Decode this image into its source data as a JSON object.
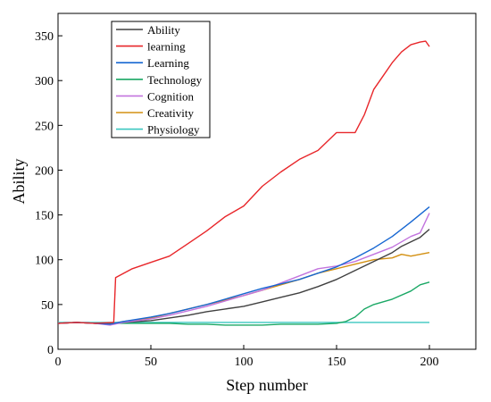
{
  "chart_data": {
    "type": "line",
    "xlabel": "Step number",
    "ylabel": "Ability",
    "xlim": [
      0,
      225
    ],
    "ylim": [
      0,
      375
    ],
    "xticks": [
      0,
      50,
      100,
      150,
      200
    ],
    "yticks": [
      0,
      50,
      100,
      150,
      200,
      250,
      300,
      350
    ],
    "grid": false,
    "legend_position": "top-left",
    "series": [
      {
        "name": "Ability",
        "color": "#404040",
        "x": [
          0,
          10,
          20,
          28,
          35,
          50,
          60,
          70,
          80,
          90,
          100,
          110,
          120,
          130,
          140,
          150,
          160,
          170,
          180,
          185,
          190,
          195,
          200
        ],
        "y": [
          29,
          30,
          29,
          28,
          30,
          32,
          35,
          38,
          42,
          45,
          48,
          53,
          58,
          63,
          70,
          78,
          88,
          98,
          108,
          115,
          120,
          125,
          134
        ]
      },
      {
        "name": "learning",
        "color": "#e8262a",
        "x": [
          0,
          10,
          20,
          30,
          31,
          40,
          50,
          60,
          70,
          80,
          90,
          100,
          110,
          120,
          130,
          140,
          150,
          155,
          160,
          165,
          170,
          175,
          180,
          185,
          190,
          195,
          198,
          200
        ],
        "y": [
          29,
          30,
          29,
          30,
          80,
          90,
          97,
          104,
          118,
          132,
          148,
          160,
          182,
          198,
          212,
          222,
          242,
          242,
          242,
          262,
          290,
          305,
          320,
          332,
          340,
          343,
          344,
          338
        ]
      },
      {
        "name": "Learning",
        "color": "#1767d2",
        "x": [
          0,
          10,
          20,
          28,
          35,
          50,
          60,
          70,
          80,
          90,
          100,
          110,
          120,
          130,
          140,
          150,
          160,
          170,
          180,
          190,
          200
        ],
        "y": [
          29,
          30,
          29,
          28,
          31,
          36,
          40,
          45,
          50,
          56,
          62,
          68,
          73,
          78,
          85,
          92,
          102,
          113,
          126,
          142,
          159
        ]
      },
      {
        "name": "Technology",
        "color": "#1aa865",
        "x": [
          0,
          10,
          20,
          30,
          40,
          50,
          60,
          70,
          80,
          90,
          100,
          110,
          120,
          130,
          140,
          150,
          155,
          160,
          165,
          170,
          180,
          190,
          195,
          200
        ],
        "y": [
          29,
          30,
          29,
          29,
          29,
          29,
          29,
          28,
          28,
          27,
          27,
          27,
          28,
          28,
          28,
          29,
          31,
          36,
          45,
          50,
          56,
          65,
          72,
          75
        ]
      },
      {
        "name": "Cognition",
        "color": "#c274de",
        "x": [
          0,
          10,
          20,
          28,
          35,
          50,
          60,
          70,
          80,
          90,
          100,
          110,
          120,
          130,
          140,
          150,
          160,
          170,
          180,
          185,
          190,
          195,
          200
        ],
        "y": [
          29,
          30,
          29,
          27,
          30,
          34,
          38,
          43,
          48,
          54,
          60,
          66,
          74,
          82,
          90,
          93,
          98,
          106,
          114,
          120,
          126,
          130,
          152
        ]
      },
      {
        "name": "Creativity",
        "color": "#d39012",
        "x": [
          0,
          10,
          20,
          28,
          35,
          50,
          60,
          70,
          80,
          90,
          100,
          110,
          120,
          130,
          140,
          150,
          160,
          170,
          180,
          185,
          190,
          195,
          200
        ],
        "y": [
          29,
          30,
          29,
          28,
          31,
          35,
          40,
          45,
          50,
          55,
          60,
          66,
          72,
          78,
          85,
          90,
          95,
          100,
          102,
          106,
          104,
          106,
          108
        ]
      },
      {
        "name": "Physiology",
        "color": "#3bc7c0",
        "x": [
          0,
          50,
          100,
          150,
          200
        ],
        "y": [
          30,
          30,
          30,
          30,
          30
        ]
      }
    ]
  }
}
